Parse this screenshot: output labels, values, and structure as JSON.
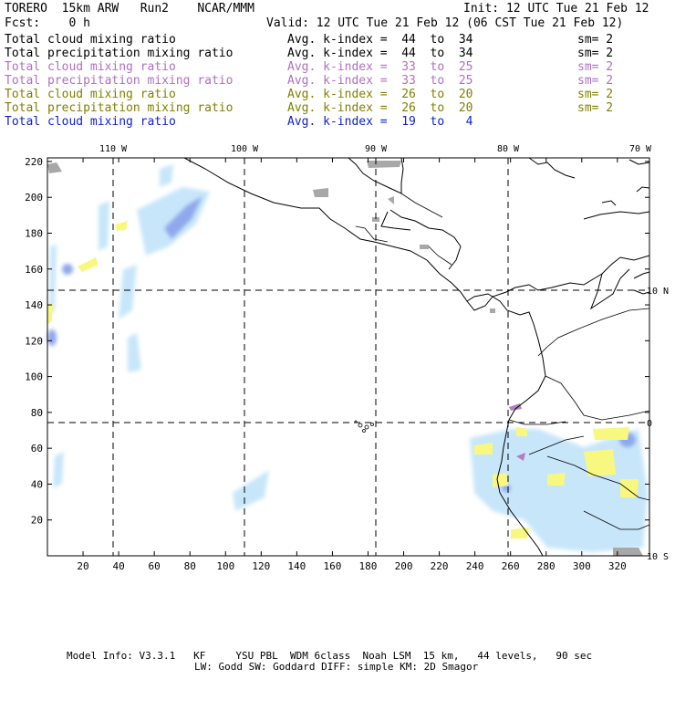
{
  "header": {
    "model": "TORERO  15km ARW   Run2    NCAR/MMM",
    "init": "Init: 12 UTC Tue 21 Feb 12",
    "fcst": "Fcst:    0 h",
    "valid": "Valid: 12 UTC Tue 21 Feb 12 (06 CST Tue 21 Feb 12)"
  },
  "legend": [
    {
      "field": "Total cloud mixing ratio",
      "kindex": "Avg. k-index =  44  to  34",
      "sm": "sm= 2",
      "color": "#000000"
    },
    {
      "field": "Total precipitation mixing ratio",
      "kindex": "Avg. k-index =  44  to  34",
      "sm": "sm= 2",
      "color": "#000000"
    },
    {
      "field": "Total cloud mixing ratio",
      "kindex": "Avg. k-index =  33  to  25",
      "sm": "sm= 2",
      "color": "#b070c0"
    },
    {
      "field": "Total precipitation mixing ratio",
      "kindex": "Avg. k-index =  33  to  25",
      "sm": "sm= 2",
      "color": "#b070c0"
    },
    {
      "field": "Total cloud mixing ratio",
      "kindex": "Avg. k-index =  26  to  20",
      "sm": "sm= 2",
      "color": "#808000"
    },
    {
      "field": "Total precipitation mixing ratio",
      "kindex": "Avg. k-index =  26  to  20",
      "sm": "sm= 2",
      "color": "#808000"
    },
    {
      "field": "Total cloud mixing ratio",
      "kindex": "Avg. k-index =  19  to   4",
      "sm": "",
      "color": "#1020d0"
    }
  ],
  "map": {
    "lon_labels": [
      "110 W",
      "100 W",
      "90 W",
      "80 W",
      "70 W"
    ],
    "lat_labels": [
      "10 N",
      "0",
      "10 S"
    ],
    "x_ticks": [
      "20",
      "40",
      "60",
      "80",
      "100",
      "120",
      "140",
      "160",
      "180",
      "200",
      "220",
      "240",
      "260",
      "280",
      "300",
      "320"
    ],
    "y_ticks": [
      "20",
      "40",
      "60",
      "80",
      "100",
      "120",
      "140",
      "160",
      "180",
      "200",
      "220"
    ]
  },
  "footer": {
    "line1": "Model Info: V3.3.1   KF     YSU PBL  WDM 6class  Noah LSM  15 km,   44 levels,   90 sec",
    "line2": "LW: Godd SW: Goddard DIFF: simple KM: 2D Smagor"
  }
}
